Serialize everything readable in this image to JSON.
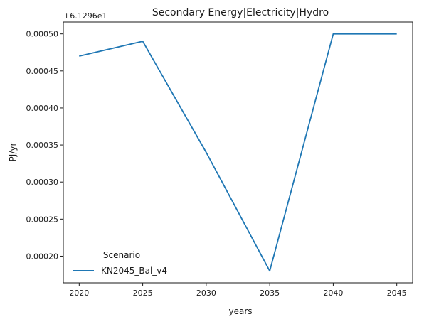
{
  "chart_data": {
    "type": "line",
    "title": "Secondary Energy|Electricity|Hydro",
    "xlabel": "years",
    "ylabel": "PJ/yr",
    "y_offset_label": "+6.1296e1",
    "x": [
      2020,
      2025,
      2030,
      2035,
      2040,
      2045
    ],
    "series": [
      {
        "name": "KN2045_Bal_v4",
        "color": "#1f77b4",
        "values": [
          0.00047,
          0.00049,
          0.00034,
          0.00018,
          0.0005,
          0.0005
        ]
      }
    ],
    "x_ticks": [
      2020,
      2025,
      2030,
      2035,
      2040,
      2045
    ],
    "y_ticks": [
      "0.00020",
      "0.00025",
      "0.00030",
      "0.00035",
      "0.00040",
      "0.00045",
      "0.00050"
    ],
    "y_tick_values": [
      0.0002,
      0.00025,
      0.0003,
      0.00035,
      0.0004,
      0.00045,
      0.0005
    ],
    "xlim": [
      2018.75,
      2046.25
    ],
    "ylim": [
      0.000164,
      0.000516
    ],
    "grid": false,
    "legend": {
      "title": "Scenario",
      "placement": "lower-left"
    }
  }
}
